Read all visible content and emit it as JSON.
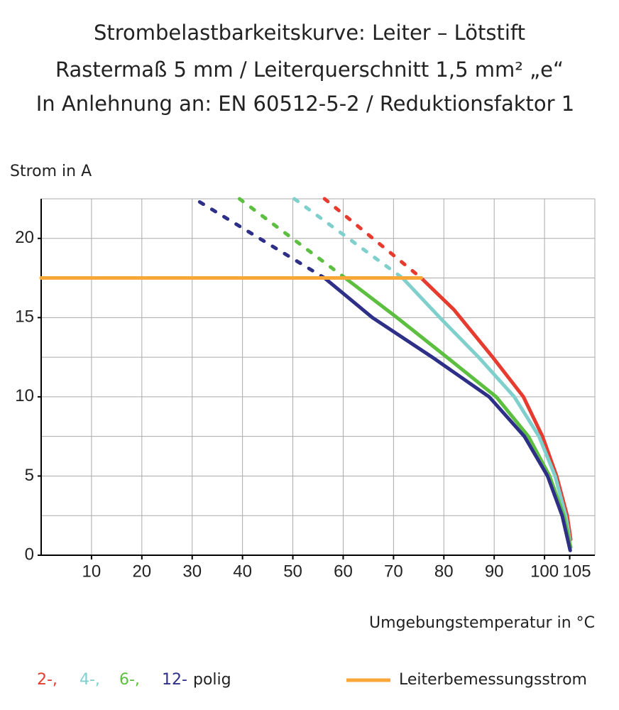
{
  "chart_data": {
    "type": "line",
    "title": [
      "Strombelastbarkeitskurve: Leiter – Lötstift",
      "Rastermaß 5 mm / Leiterquerschnitt 1,5 mm² „e“",
      "In Anlehnung an: EN 60512-5-2 / Reduktionsfaktor 1"
    ],
    "y_label": "Strom in A",
    "x_label": "Umgebungstemperatur in °C",
    "xlim": [
      0,
      110
    ],
    "ylim": [
      0,
      22.5
    ],
    "xticks": [
      10,
      20,
      30,
      40,
      50,
      60,
      70,
      80,
      90,
      100,
      105
    ],
    "xgrid": [
      10,
      20,
      30,
      40,
      50,
      60,
      70,
      80,
      90,
      100,
      110
    ],
    "yticks": [
      0,
      5,
      10,
      15,
      20
    ],
    "ygrid": [
      2.5,
      5,
      7.5,
      10,
      12.5,
      15,
      17.5,
      20,
      22.5
    ],
    "grid": true,
    "legend_suffix": "polig",
    "series": [
      {
        "name": "2-,",
        "color": "#e63b2e",
        "x": [
          75.5,
          82,
          89.7,
          95.8,
          99.6,
          102.4,
          104.5,
          105.2
        ],
        "values": [
          17.5,
          15.5,
          12.5,
          10,
          7.5,
          5,
          2.5,
          1
        ],
        "dashed": {
          "x": [
            56.3,
            75.5
          ],
          "values": [
            22.5,
            17.5
          ]
        }
      },
      {
        "name": "4-,",
        "color": "#7fd0cc",
        "x": [
          71.8,
          79.2,
          86.9,
          94,
          98.9,
          102.1,
          104.2,
          105
        ],
        "values": [
          17.5,
          15,
          12.5,
          10,
          7.5,
          5,
          2.5,
          1
        ],
        "dashed": {
          "x": [
            50.3,
            71.8
          ],
          "values": [
            22.5,
            17.5
          ]
        }
      },
      {
        "name": "6-,",
        "color": "#5cbf3f",
        "x": [
          60.4,
          70.7,
          80.6,
          90.4,
          96.8,
          101,
          103.8,
          105.2
        ],
        "values": [
          17.5,
          15,
          12.5,
          10,
          7.5,
          5,
          2.5,
          0.5
        ],
        "dashed": {
          "x": [
            39.4,
            60.4
          ],
          "values": [
            22.5,
            17.5
          ]
        }
      },
      {
        "name": "12-",
        "color": "#2e2f87",
        "x": [
          56.3,
          65.8,
          77.7,
          89,
          96,
          100.6,
          103.5,
          105.1
        ],
        "values": [
          17.5,
          15,
          12.5,
          10,
          7.5,
          5,
          2.5,
          0.3
        ],
        "dashed": {
          "x": [
            31.5,
            56.3
          ],
          "values": [
            22.3,
            17.5
          ]
        }
      },
      {
        "name": "Leiterbemessungsstrom",
        "color": "#f7a839",
        "x": [
          0,
          75.5
        ],
        "values": [
          17.5,
          17.5
        ]
      }
    ]
  }
}
